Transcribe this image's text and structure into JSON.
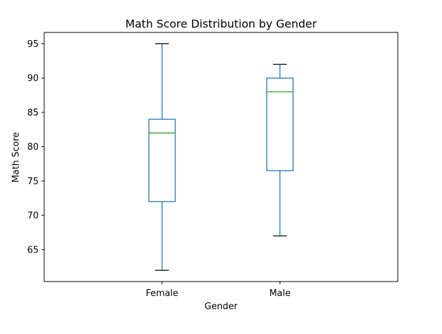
{
  "chart_data": {
    "type": "box",
    "title": "Math Score Distribution by Gender",
    "xlabel": "Gender",
    "ylabel": "Math Score",
    "categories": [
      "Female",
      "Male"
    ],
    "boxes": [
      {
        "category": "Female",
        "whisker_low": 62,
        "q1": 72,
        "median": 82,
        "q3": 84,
        "whisker_high": 95
      },
      {
        "category": "Male",
        "whisker_low": 67,
        "q1": 76.5,
        "median": 88,
        "q3": 90,
        "whisker_high": 92
      }
    ],
    "ylim": [
      60.35,
      96.65
    ],
    "yticks": [
      65,
      70,
      75,
      80,
      85,
      90,
      95
    ],
    "grid": false,
    "colors": {
      "box": "#1f77b4",
      "median": "#2ca02c",
      "cap": "#000000",
      "axes": "#000000"
    }
  }
}
